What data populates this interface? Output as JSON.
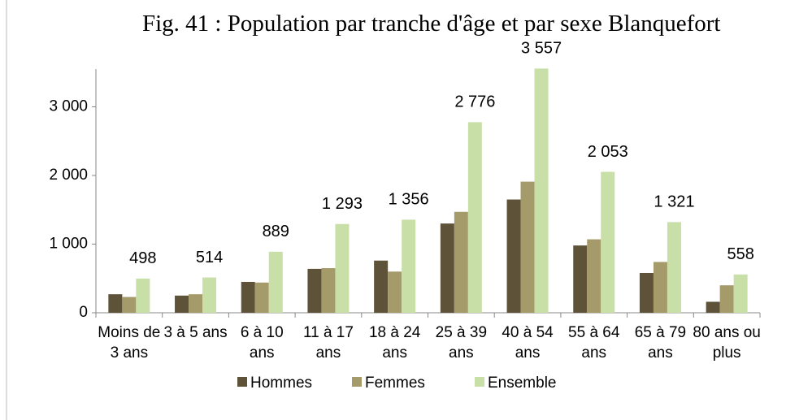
{
  "chart_data": {
    "type": "bar",
    "title": "Fig. 41 : Population par tranche d'âge et par sexe Blanquefort",
    "categories": [
      "Moins de 3 ans",
      "3 à 5 ans",
      "6 à 10 ans",
      "11 à 17 ans",
      "18 à 24 ans",
      "25 à 39 ans",
      "40 à 54 ans",
      "55 à 64 ans",
      "65 à 79 ans",
      "80 ans ou plus"
    ],
    "series": [
      {
        "name": "Hommes",
        "color": "#5e5339",
        "values": [
          270,
          250,
          450,
          640,
          760,
          1300,
          1650,
          980,
          580,
          160
        ]
      },
      {
        "name": "Femmes",
        "color": "#a59a6a",
        "values": [
          230,
          270,
          440,
          650,
          600,
          1470,
          1910,
          1070,
          740,
          400
        ]
      },
      {
        "name": "Ensemble",
        "color": "#c9dfa8",
        "values": [
          498,
          514,
          889,
          1293,
          1356,
          2776,
          3557,
          2053,
          1321,
          558
        ],
        "value_labels": [
          "498",
          "514",
          "889",
          "1 293",
          "1 356",
          "2 776",
          "3 557",
          "2 053",
          "1 321",
          "558"
        ]
      }
    ],
    "ylim": [
      0,
      3550
    ],
    "yticks": [
      0,
      {
        "value": 1000,
        "label": "1 000"
      },
      {
        "value": 2000,
        "label": "2 000"
      },
      {
        "value": 3000,
        "label": "3 000"
      }
    ],
    "grid": false,
    "legend": "bottom"
  }
}
